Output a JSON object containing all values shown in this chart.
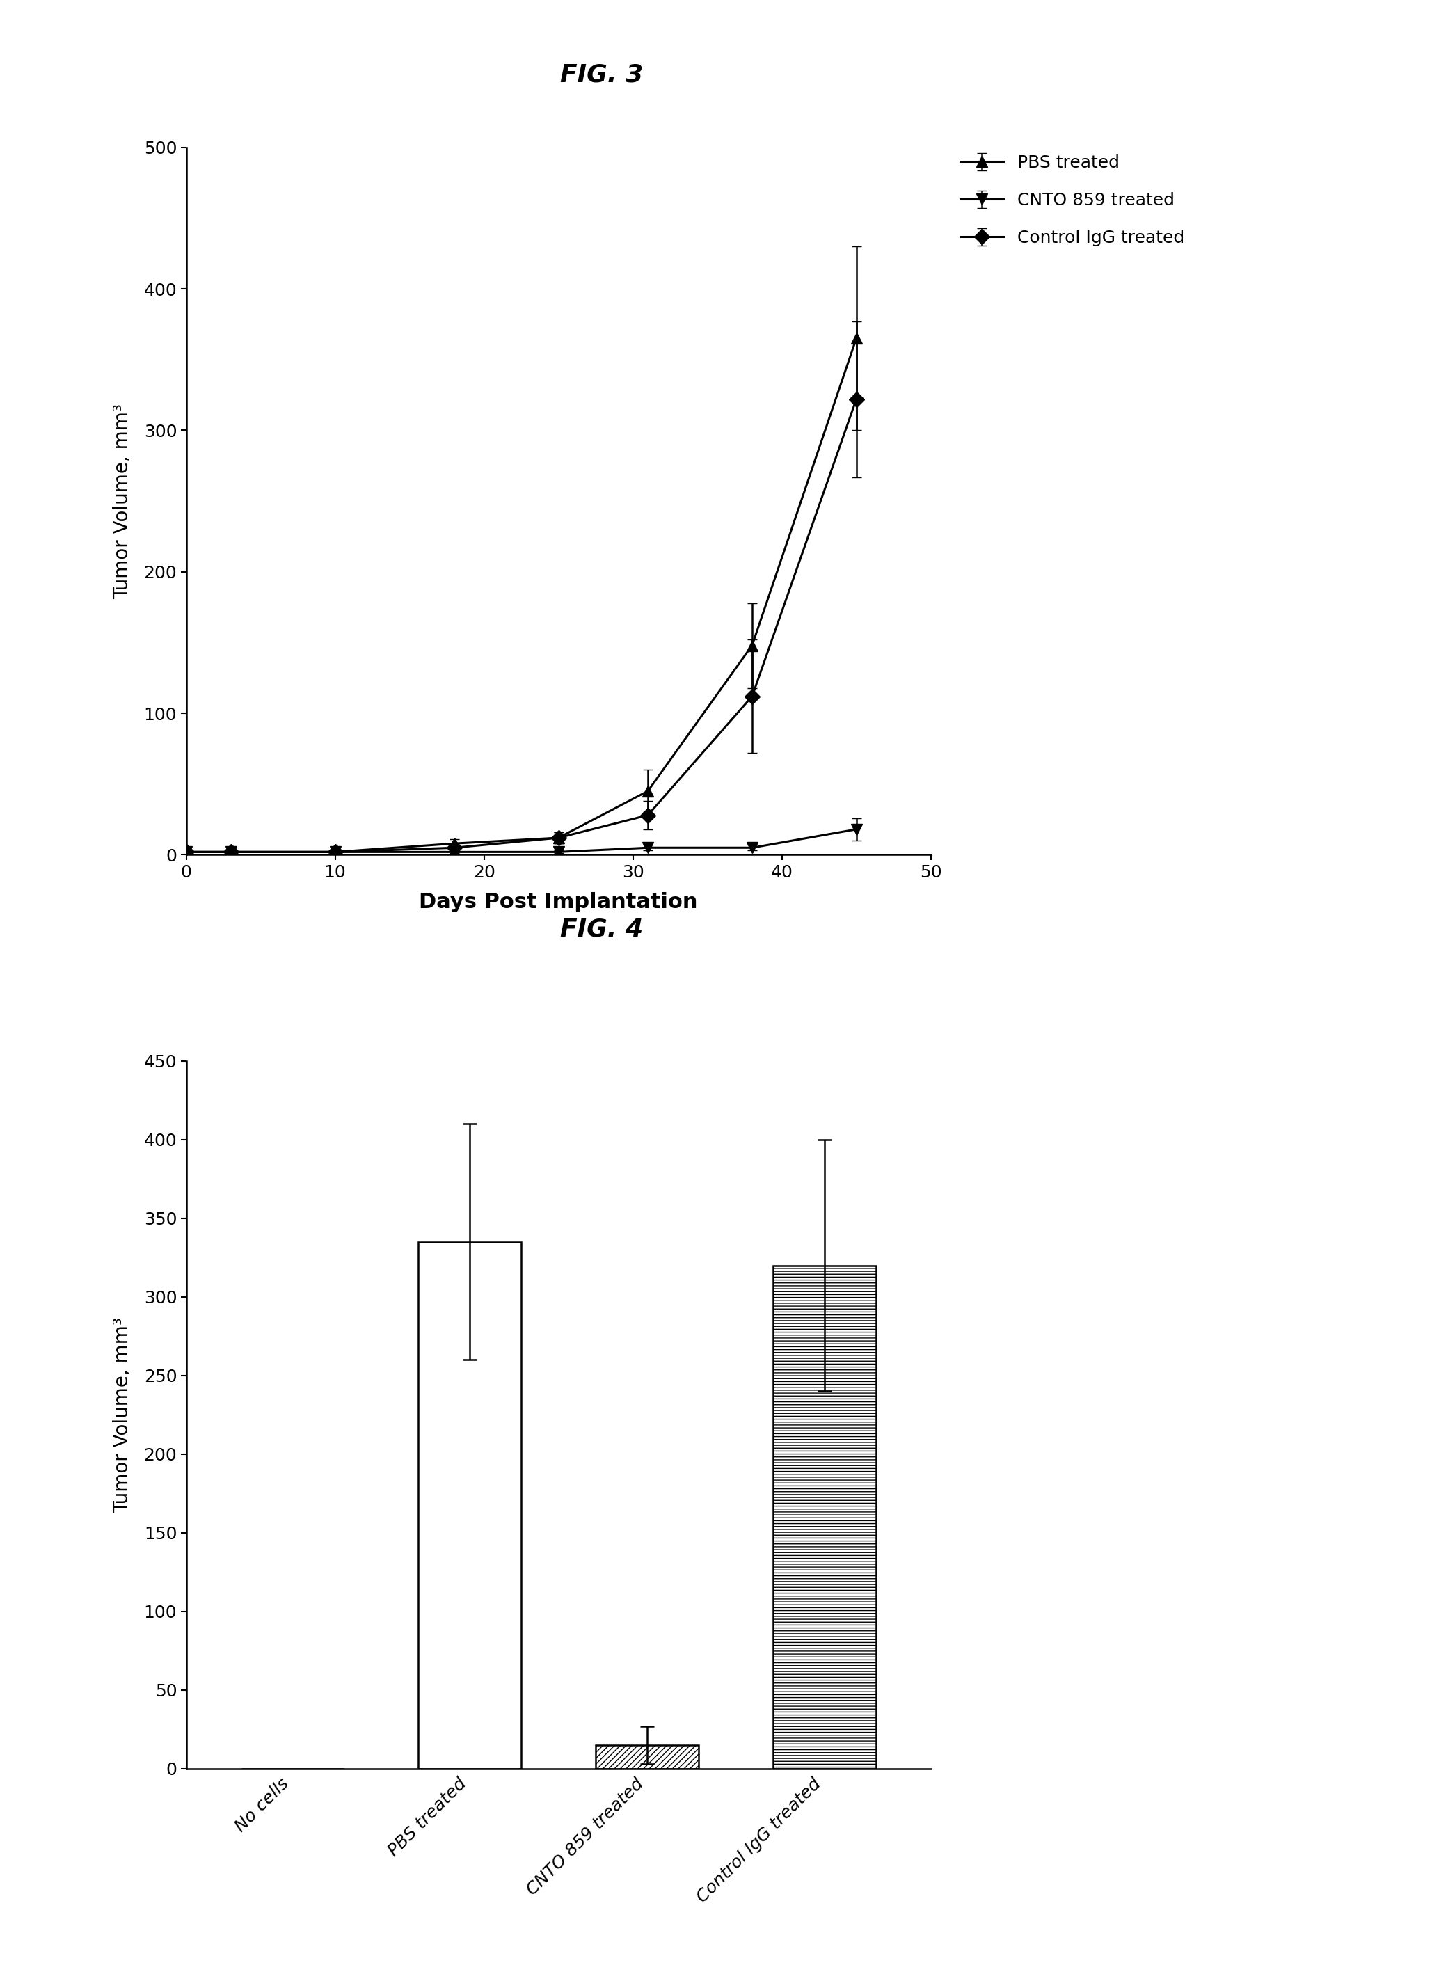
{
  "fig3_title": "FIG. 3",
  "fig4_title": "FIG. 4",
  "line_xlabel": "Days Post Implantation",
  "line_ylabel": "Tumor Volume, mm³",
  "line_ylim": [
    0,
    500
  ],
  "line_xlim": [
    0,
    50
  ],
  "line_yticks": [
    0,
    100,
    200,
    300,
    400,
    500
  ],
  "line_xticks": [
    0,
    10,
    20,
    30,
    40,
    50
  ],
  "pbs_x": [
    0,
    3,
    10,
    18,
    25,
    31,
    38,
    45
  ],
  "pbs_y": [
    2,
    2,
    2,
    8,
    12,
    45,
    148,
    365
  ],
  "pbs_yerr": [
    1,
    1,
    1,
    3,
    4,
    15,
    30,
    65
  ],
  "cnto_x": [
    0,
    3,
    10,
    18,
    25,
    31,
    38,
    45
  ],
  "cnto_y": [
    2,
    2,
    2,
    2,
    2,
    5,
    5,
    18
  ],
  "cnto_yerr": [
    1,
    1,
    1,
    1,
    1,
    2,
    2,
    8
  ],
  "ctrl_x": [
    0,
    3,
    10,
    18,
    25,
    31,
    38,
    45
  ],
  "ctrl_y": [
    2,
    2,
    2,
    5,
    12,
    28,
    112,
    322
  ],
  "ctrl_yerr": [
    1,
    1,
    1,
    2,
    4,
    10,
    40,
    55
  ],
  "bar_categories": [
    "No cells",
    "PBS treated",
    "CNTO 859 treated",
    "Control IgG treated"
  ],
  "bar_values": [
    0,
    335,
    15,
    320
  ],
  "bar_errors": [
    0,
    75,
    12,
    80
  ],
  "bar_ylabel": "Tumor Volume, mm³",
  "bar_ylim": [
    0,
    450
  ],
  "bar_yticks": [
    0,
    50,
    100,
    150,
    200,
    250,
    300,
    350,
    400,
    450
  ],
  "bg_color": "#ffffff"
}
